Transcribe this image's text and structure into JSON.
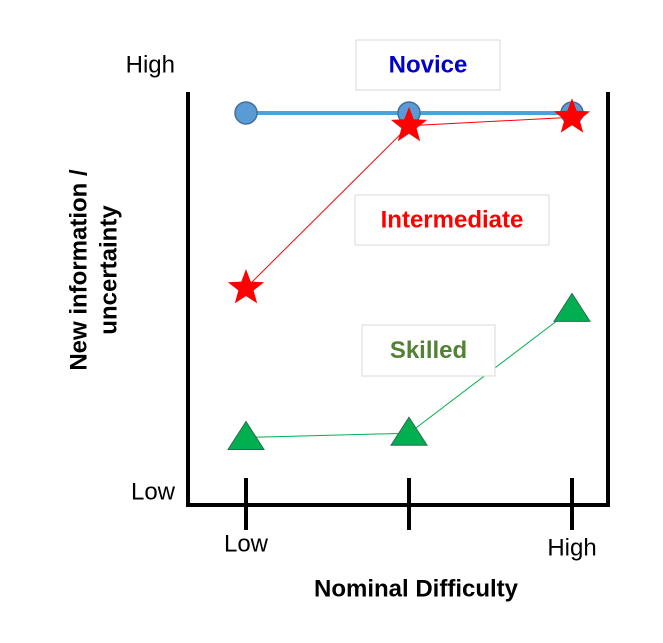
{
  "chart_data": {
    "type": "line",
    "xlabel": "Nominal Difficulty",
    "ylabel": [
      "New information /",
      "uncertainty"
    ],
    "categories": [
      "Low",
      null,
      "High"
    ],
    "ylim": [
      0,
      1
    ],
    "yticks": [
      {
        "value": 0,
        "label": "Low"
      },
      {
        "value": 1,
        "label": "High"
      }
    ],
    "series": [
      {
        "name": "Novice",
        "color": "#4aa3d8",
        "marker": "circle",
        "marker_color": "#5b9bd5",
        "label_color": "#0000cc",
        "values": [
          0.89,
          0.89,
          0.89
        ]
      },
      {
        "name": "Intermediate",
        "color": "#ff0000",
        "marker": "star",
        "marker_color": "#ff0000",
        "label_color": "#ff0000",
        "values": [
          0.48,
          0.86,
          0.88
        ]
      },
      {
        "name": "Skilled",
        "color": "#00b050",
        "marker": "triangle",
        "marker_color": "#00b050",
        "label_color": "#548235",
        "values": [
          0.13,
          0.14,
          0.43
        ]
      }
    ]
  }
}
